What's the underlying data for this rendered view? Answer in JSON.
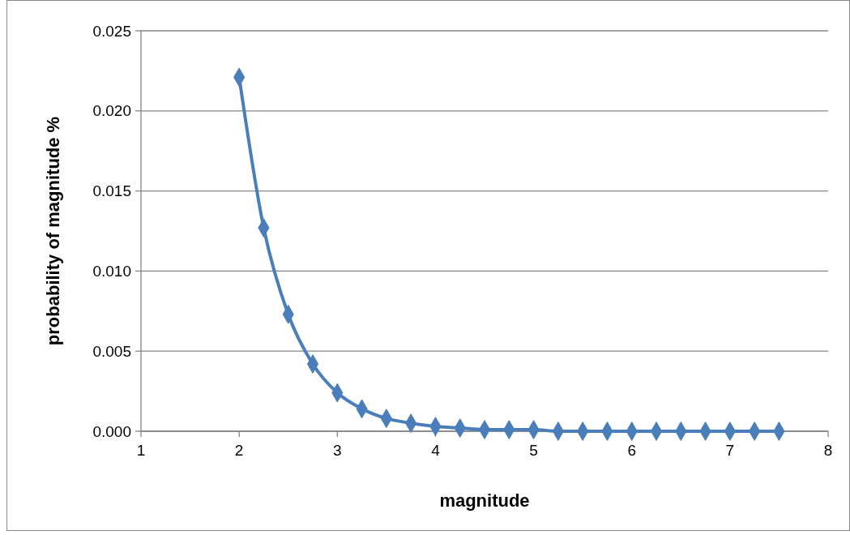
{
  "chart_data": {
    "type": "line",
    "xlabel": "magnitude",
    "ylabel": "probability of magnitude %",
    "x": [
      2,
      2.25,
      2.5,
      2.75,
      3,
      3.25,
      3.5,
      3.75,
      4,
      4.25,
      4.5,
      4.75,
      5,
      5.25,
      5.5,
      5.75,
      6,
      6.25,
      6.5,
      6.75,
      7,
      7.25,
      7.5
    ],
    "series": [
      {
        "color": "#4a7ebb",
        "values": [
          0.0221,
          0.0127,
          0.0073,
          0.0042,
          0.0024,
          0.0014,
          0.0008,
          0.0005,
          0.0003,
          0.0002,
          0.0001,
          0.0001,
          0.0001,
          0,
          0,
          0,
          0,
          0,
          0,
          0,
          0,
          0,
          0
        ]
      }
    ],
    "xlim": [
      1,
      8
    ],
    "xticks": [
      1,
      2,
      3,
      4,
      5,
      6,
      7,
      8
    ],
    "ylim": [
      0,
      0.025
    ],
    "yticks": [
      {
        "value": 0,
        "label": "0.000"
      },
      {
        "value": 0.005,
        "label": "0.005"
      },
      {
        "value": 0.01,
        "label": "0.010"
      },
      {
        "value": 0.015,
        "label": "0.015"
      },
      {
        "value": 0.02,
        "label": "0.020"
      },
      {
        "value": 0.025,
        "label": "0.025"
      }
    ],
    "grid": "y",
    "marker": "diamond",
    "line_style": "solid"
  }
}
